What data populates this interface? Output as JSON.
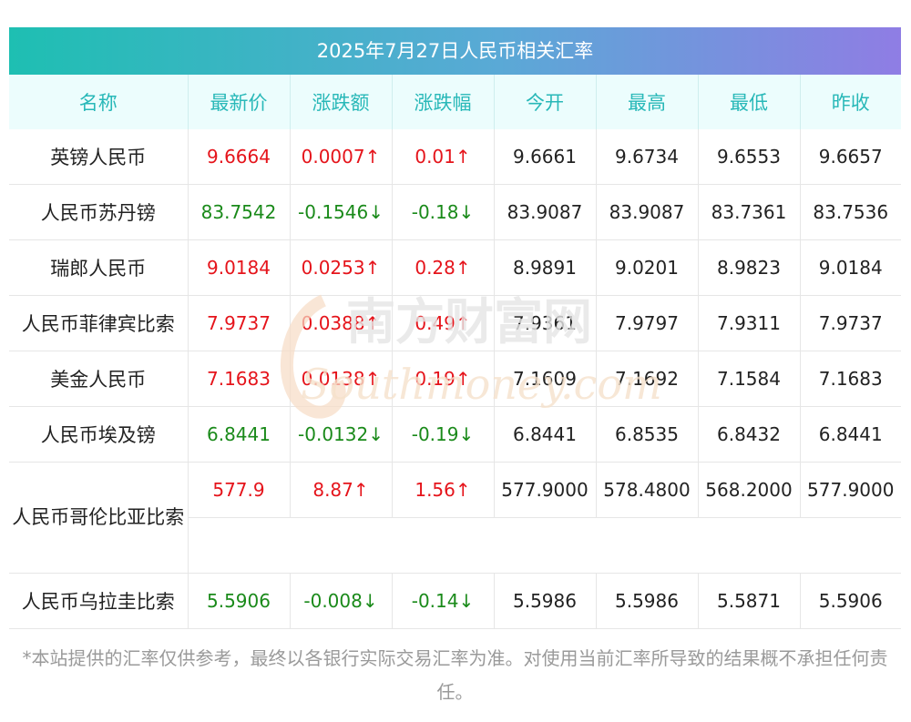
{
  "title": "2025年7月27日人民币相关汇率",
  "headers": [
    "名称",
    "最新价",
    "涨跌额",
    "涨跌幅",
    "今开",
    "最高",
    "最低",
    "昨收"
  ],
  "rows": [
    {
      "name": "英镑人民币",
      "latest": "9.6664",
      "change": "0.0007↑",
      "pct": "0.01↑",
      "open": "9.6661",
      "high": "9.6734",
      "low": "9.6553",
      "prev": "9.6657",
      "dir": "up"
    },
    {
      "name": "人民币苏丹镑",
      "latest": "83.7542",
      "change": "-0.1546↓",
      "pct": "-0.18↓",
      "open": "83.9087",
      "high": "83.9087",
      "low": "83.7361",
      "prev": "83.7536",
      "dir": "down"
    },
    {
      "name": "瑞郎人民币",
      "latest": "9.0184",
      "change": "0.0253↑",
      "pct": "0.28↑",
      "open": "8.9891",
      "high": "9.0201",
      "low": "8.9823",
      "prev": "9.0184",
      "dir": "up"
    },
    {
      "name": "人民币菲律宾比索",
      "latest": "7.9737",
      "change": "0.0388↑",
      "pct": "0.49↑",
      "open": "7.9361",
      "high": "7.9797",
      "low": "7.9311",
      "prev": "7.9737",
      "dir": "up"
    },
    {
      "name": "美金人民币",
      "latest": "7.1683",
      "change": "0.0138↑",
      "pct": "0.19↑",
      "open": "7.1609",
      "high": "7.1692",
      "low": "7.1584",
      "prev": "7.1683",
      "dir": "up"
    },
    {
      "name": "人民币埃及镑",
      "latest": "6.8441",
      "change": "-0.0132↓",
      "pct": "-0.19↓",
      "open": "6.8441",
      "high": "6.8535",
      "low": "6.8432",
      "prev": "6.8441",
      "dir": "down"
    },
    {
      "name": "人民币哥伦比亚比索",
      "latest": "577.9",
      "change": "8.87↑",
      "pct": "1.56↑",
      "open": "577.9000",
      "high": "578.4800",
      "low": "568.2000",
      "prev": "577.9000",
      "dir": "up"
    },
    {
      "name": "人民币乌拉圭比索",
      "latest": "5.5906",
      "change": "-0.008↓",
      "pct": "-0.14↓",
      "open": "5.5986",
      "high": "5.5986",
      "low": "5.5871",
      "prev": "5.5906",
      "dir": "down"
    }
  ],
  "watermark": {
    "cn": "南方财富网",
    "en": "Southmoney.com"
  },
  "footnote": "*本站提供的汇率仅供参考，最终以各银行实际交易汇率为准。对使用当前汇率所导致的结果概不承担任何责任。",
  "colors": {
    "up": "#e5141b",
    "down": "#1a8a1a",
    "header_text": "#28b8b8",
    "header_bg": "#ecfdfd"
  }
}
